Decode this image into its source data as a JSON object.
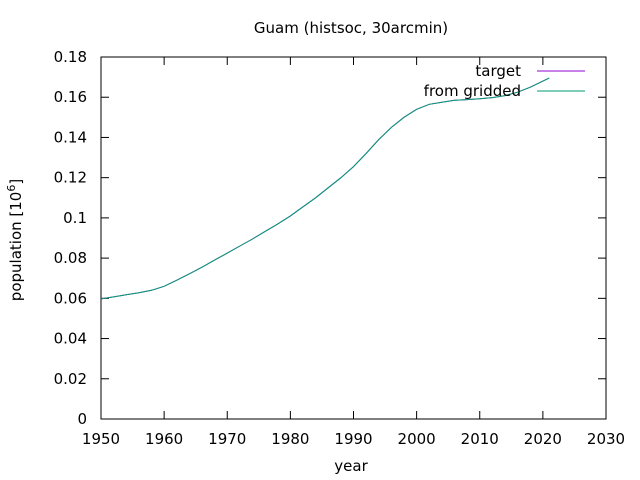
{
  "chart_data": {
    "type": "line",
    "title": "Guam (histsoc, 30arcmin)",
    "xlabel": "year",
    "ylabel": "population [10",
    "ylabel_sup": "6",
    "ylabel_close": "]",
    "xlim": [
      1950,
      2030
    ],
    "ylim": [
      0,
      0.18
    ],
    "xticks": [
      1950,
      1960,
      1970,
      1980,
      1990,
      2000,
      2010,
      2020,
      2030
    ],
    "yticks": [
      0,
      0.02,
      0.04,
      0.06,
      0.08,
      0.1,
      0.12,
      0.14,
      0.16,
      0.18
    ],
    "ytick_labels": [
      "0",
      "0.02",
      "0.04",
      "0.06",
      "0.08",
      "0.1",
      "0.12",
      "0.14",
      "0.16",
      "0.18"
    ],
    "grid": false,
    "legend_position": "top-right",
    "series": [
      {
        "name": "target",
        "color": "#9400d3",
        "x": [
          1950,
          1952,
          1954,
          1956,
          1958,
          1960,
          1962,
          1964,
          1966,
          1968,
          1970,
          1972,
          1974,
          1976,
          1978,
          1980,
          1982,
          1984,
          1986,
          1988,
          1990,
          1992,
          1994,
          1996,
          1998,
          2000,
          2002,
          2004,
          2006,
          2008,
          2010,
          2012,
          2014,
          2016,
          2018,
          2020,
          2021
        ],
        "y": [
          0.0597,
          0.0607,
          0.0618,
          0.0628,
          0.064,
          0.066,
          0.069,
          0.0722,
          0.0755,
          0.079,
          0.0825,
          0.086,
          0.0895,
          0.0933,
          0.097,
          0.101,
          0.1055,
          0.11,
          0.115,
          0.12,
          0.1255,
          0.132,
          0.139,
          0.145,
          0.15,
          0.154,
          0.1565,
          0.1575,
          0.1585,
          0.1588,
          0.1592,
          0.1598,
          0.1608,
          0.1625,
          0.165,
          0.168,
          0.1695
        ]
      },
      {
        "name": "from gridded",
        "color": "#009e73",
        "x": [
          1950,
          1952,
          1954,
          1956,
          1958,
          1960,
          1962,
          1964,
          1966,
          1968,
          1970,
          1972,
          1974,
          1976,
          1978,
          1980,
          1982,
          1984,
          1986,
          1988,
          1990,
          1992,
          1994,
          1996,
          1998,
          2000,
          2002,
          2004,
          2006,
          2008,
          2010,
          2012,
          2014,
          2016,
          2018,
          2020,
          2021
        ],
        "y": [
          0.0597,
          0.0607,
          0.0618,
          0.0628,
          0.064,
          0.066,
          0.069,
          0.0722,
          0.0755,
          0.079,
          0.0825,
          0.086,
          0.0895,
          0.0933,
          0.097,
          0.101,
          0.1055,
          0.11,
          0.115,
          0.12,
          0.1255,
          0.132,
          0.139,
          0.145,
          0.15,
          0.154,
          0.1565,
          0.1575,
          0.1585,
          0.1588,
          0.1592,
          0.1598,
          0.1608,
          0.1625,
          0.165,
          0.168,
          0.1695
        ]
      }
    ]
  }
}
